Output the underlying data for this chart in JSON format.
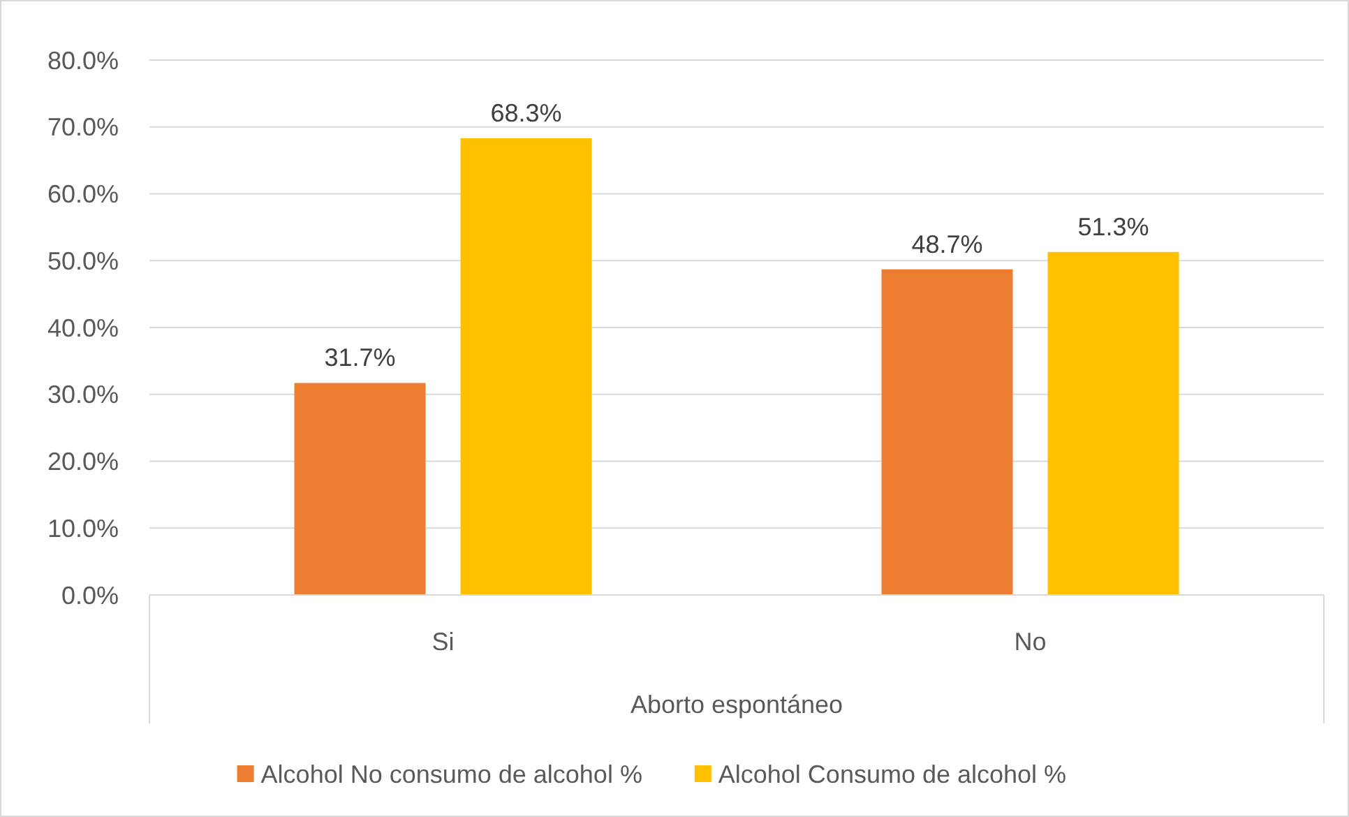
{
  "chart_data": {
    "type": "bar",
    "xlabel": "Aborto espontáneo",
    "categories": [
      "Si",
      "No"
    ],
    "series": [
      {
        "name": "Alcohol No consumo de alcohol %",
        "color": "#ed7d31",
        "values": [
          31.7,
          48.7
        ],
        "value_labels": [
          "31.7%",
          "48.7%"
        ]
      },
      {
        "name": "Alcohol Consumo de alcohol %",
        "color": "#ffc000",
        "values": [
          68.3,
          51.3
        ],
        "value_labels": [
          "68.3%",
          "51.3%"
        ]
      }
    ],
    "ylim": [
      0,
      80
    ],
    "yticks": [
      {
        "value": 0,
        "label": "0.0%"
      },
      {
        "value": 10,
        "label": "10.0%"
      },
      {
        "value": 20,
        "label": "20.0%"
      },
      {
        "value": 30,
        "label": "30.0%"
      },
      {
        "value": 40,
        "label": "40.0%"
      },
      {
        "value": 50,
        "label": "50.0%"
      },
      {
        "value": 60,
        "label": "60.0%"
      },
      {
        "value": 70,
        "label": "70.0%"
      },
      {
        "value": 80,
        "label": "80.0%"
      }
    ],
    "grid": "y",
    "legend": "bottom"
  }
}
